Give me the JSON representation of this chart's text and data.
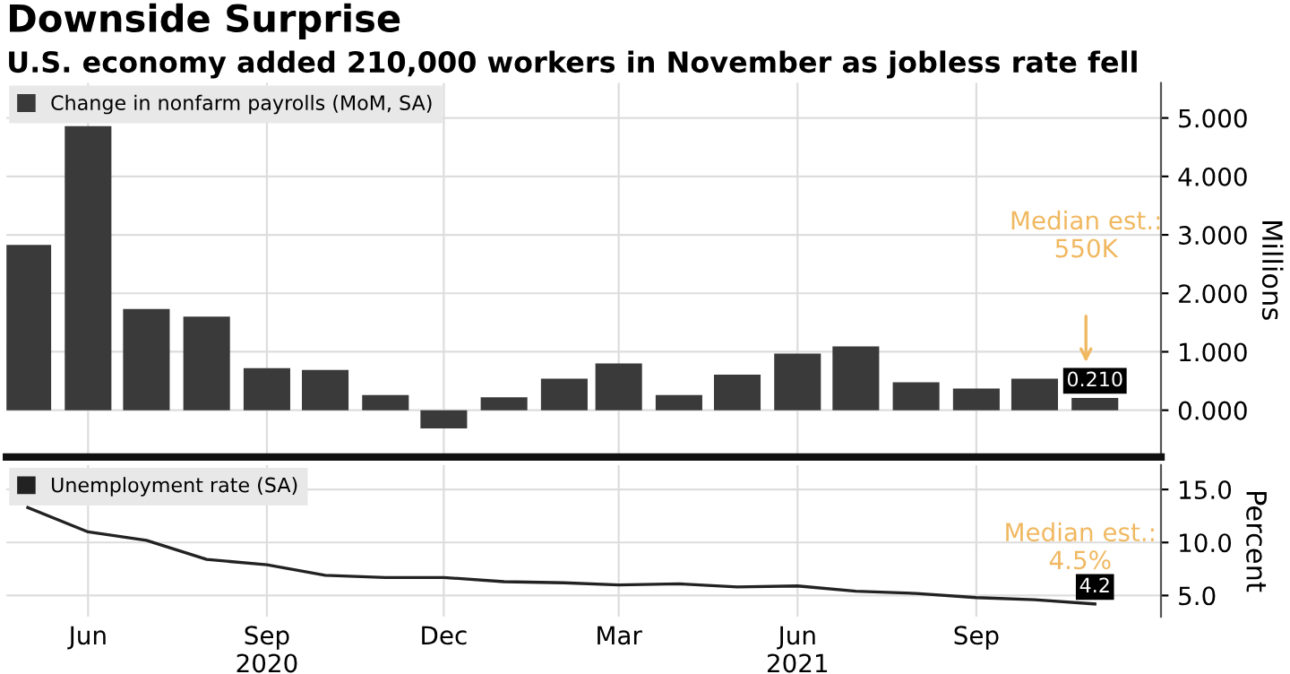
{
  "chart_data": [
    {
      "type": "bar",
      "title": "Downside Surprise",
      "subtitle": "U.S. economy added 210,000 workers in November as jobless rate fell",
      "ylabel": "Millions",
      "x": [
        "2020-05",
        "2020-06",
        "2020-07",
        "2020-08",
        "2020-09",
        "2020-10",
        "2020-11",
        "2020-12",
        "2021-01",
        "2021-02",
        "2021-03",
        "2021-04",
        "2021-05",
        "2021-06",
        "2021-07",
        "2021-08",
        "2021-09",
        "2021-10",
        "2021-11"
      ],
      "series": [
        {
          "name": "Change in nonfarm payrolls (MoM, SA)",
          "color": "#3a3a3a",
          "values": [
            2.83,
            4.86,
            1.73,
            1.6,
            0.72,
            0.69,
            0.26,
            -0.31,
            0.22,
            0.54,
            0.8,
            0.26,
            0.61,
            0.97,
            1.09,
            0.48,
            0.37,
            0.54,
            0.21
          ],
          "value_labels": [
            null,
            null,
            null,
            null,
            null,
            null,
            null,
            null,
            null,
            null,
            null,
            null,
            null,
            null,
            null,
            null,
            null,
            null,
            "0.210"
          ]
        }
      ],
      "xlim": [
        "2020-04-20",
        "2021-12-05"
      ],
      "xticks": [
        "2020-06-01",
        "2020-09-01",
        "2020-12-01",
        "2021-03-01",
        "2021-06-01",
        "2021-09-01"
      ],
      "ylim": [
        -0.8,
        5.6
      ],
      "yticks": [
        {
          "value": 0,
          "label": "0.000"
        },
        {
          "value": 1,
          "label": "1.000"
        },
        {
          "value": 2,
          "label": "2.000"
        },
        {
          "value": 3,
          "label": "3.000"
        },
        {
          "value": 4,
          "label": "4.000"
        },
        {
          "value": 5,
          "label": "5.000"
        }
      ],
      "annotations": [
        "Median est.:\n550K"
      ],
      "grid": true,
      "legend": "top left",
      "tick_labels": "y"
    },
    {
      "type": "line",
      "ylabel": "Percent",
      "x": [
        "2020-05",
        "2020-06",
        "2020-07",
        "2020-08",
        "2020-09",
        "2020-10",
        "2020-11",
        "2020-12",
        "2021-01",
        "2021-02",
        "2021-03",
        "2021-04",
        "2021-05",
        "2021-06",
        "2021-07",
        "2021-08",
        "2021-09",
        "2021-10",
        "2021-11"
      ],
      "series": [
        {
          "name": "Unemployment rate (SA)",
          "color": "#222222",
          "values": [
            13.3,
            11.0,
            10.2,
            8.4,
            7.9,
            6.9,
            6.7,
            6.7,
            6.3,
            6.2,
            6.0,
            6.1,
            5.8,
            5.9,
            5.4,
            5.2,
            4.8,
            4.6,
            4.2
          ],
          "value_labels": [
            null,
            null,
            null,
            null,
            null,
            null,
            null,
            null,
            null,
            null,
            null,
            null,
            null,
            null,
            null,
            null,
            null,
            null,
            "4.2"
          ]
        }
      ],
      "xlim": [
        "2020-04-20",
        "2021-12-05"
      ],
      "xticks": [
        {
          "value": "2020-06-01",
          "label": "Jun"
        },
        {
          "value": "2020-09-01",
          "label": "Sep\n2020"
        },
        {
          "value": "2020-12-01",
          "label": "Dec"
        },
        {
          "value": "2021-03-01",
          "label": "Mar"
        },
        {
          "value": "2021-06-01",
          "label": "Jun\n2021"
        },
        {
          "value": "2021-09-01",
          "label": "Sep"
        }
      ],
      "ylim": [
        3,
        17.3
      ],
      "yticks": [
        {
          "value": 5,
          "label": "5.0"
        },
        {
          "value": 10,
          "label": "10.0"
        },
        {
          "value": 15,
          "label": "15.0"
        }
      ],
      "annotations": [
        "Median est.:\n4.5%"
      ],
      "grid": true,
      "legend": "top left",
      "line_style": "solid"
    }
  ]
}
